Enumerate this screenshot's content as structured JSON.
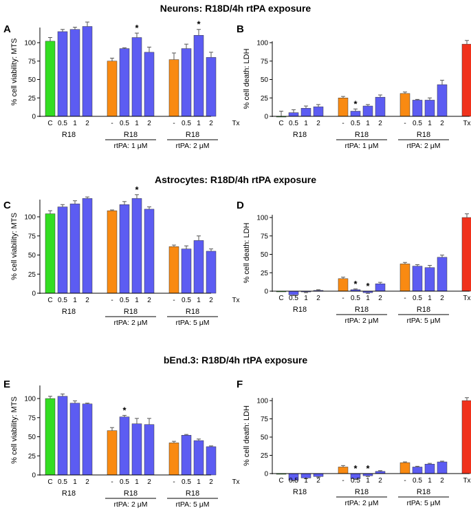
{
  "sections": [
    {
      "title": "Neurons: R18D/4h rtPA exposure"
    },
    {
      "title": "Astrocytes: R18D/4h rtPA exposure"
    },
    {
      "title": "bEnd.3: R18D/4h rtPA exposure"
    }
  ],
  "colors": {
    "control": "#33dd22",
    "rtpa_only": "#f98a12",
    "r18": "#5c5cf2",
    "tx": "#f0321c"
  },
  "chart_data": [
    {
      "type": "bar",
      "panel": "A",
      "ylabel": "% cell viability: MTS",
      "ylim": [
        0,
        125
      ],
      "yticks": [
        0,
        25,
        50,
        75,
        100
      ],
      "groups": [
        {
          "categories": [
            "C",
            "0.5",
            "1",
            "2"
          ],
          "values": [
            102,
            115,
            118,
            122
          ],
          "errors": [
            5,
            3,
            3,
            6
          ],
          "colors": [
            "control",
            "r18",
            "r18",
            "r18"
          ],
          "stars": [
            false,
            false,
            false,
            false
          ],
          "label": "R18",
          "sublabel": ""
        },
        {
          "categories": [
            "-",
            "0.5",
            "1",
            "2"
          ],
          "values": [
            75,
            92,
            107,
            87
          ],
          "errors": [
            4,
            1,
            6,
            7
          ],
          "colors": [
            "rtpa_only",
            "r18",
            "r18",
            "r18"
          ],
          "stars": [
            false,
            false,
            true,
            false
          ],
          "label": "R18",
          "sublabel": "rtPA: 1 μM"
        },
        {
          "categories": [
            "-",
            "0.5",
            "1",
            "2"
          ],
          "values": [
            77,
            92,
            110,
            80
          ],
          "errors": [
            9,
            6,
            8,
            7
          ],
          "colors": [
            "rtpa_only",
            "r18",
            "r18",
            "r18"
          ],
          "stars": [
            false,
            false,
            true,
            false
          ],
          "label": "R18",
          "sublabel": "rtPA: 2 μM"
        },
        {
          "categories": [
            "Tx"
          ],
          "values": [
            null
          ],
          "errors": [
            0
          ],
          "colors": [
            "tx"
          ],
          "stars": [
            false
          ],
          "label": "",
          "sublabel": ""
        }
      ]
    },
    {
      "type": "bar",
      "panel": "B",
      "ylabel": "% cell death: LDH",
      "ylim": [
        0,
        100
      ],
      "yticks": [
        0,
        25,
        50,
        75,
        100
      ],
      "groups": [
        {
          "categories": [
            "C",
            "0.5",
            "1",
            "2"
          ],
          "values": [
            0,
            5,
            11,
            13
          ],
          "errors": [
            7,
            4,
            3,
            3
          ],
          "colors": [
            "control",
            "r18",
            "r18",
            "r18"
          ],
          "stars": [
            false,
            false,
            false,
            false
          ],
          "label": "R18",
          "sublabel": ""
        },
        {
          "categories": [
            "-",
            "0.5",
            "1",
            "2"
          ],
          "values": [
            25,
            7,
            14,
            26
          ],
          "errors": [
            2,
            3,
            2,
            3
          ],
          "colors": [
            "rtpa_only",
            "r18",
            "r18",
            "r18"
          ],
          "stars": [
            false,
            true,
            false,
            false
          ],
          "label": "R18",
          "sublabel": "rtPA: 1 μM"
        },
        {
          "categories": [
            "-",
            "0.5",
            "1",
            "2"
          ],
          "values": [
            31,
            22,
            22,
            43
          ],
          "errors": [
            2,
            1,
            3,
            6
          ],
          "colors": [
            "rtpa_only",
            "r18",
            "r18",
            "r18"
          ],
          "stars": [
            false,
            false,
            false,
            false
          ],
          "label": "R18",
          "sublabel": "rtPA: 2 μM"
        },
        {
          "categories": [
            "Tx"
          ],
          "values": [
            98
          ],
          "errors": [
            5
          ],
          "colors": [
            "tx"
          ],
          "stars": [
            false
          ],
          "label": "",
          "sublabel": ""
        }
      ]
    },
    {
      "type": "bar",
      "panel": "C",
      "ylabel": "% cell viability: MTS",
      "ylim": [
        0,
        125
      ],
      "yticks": [
        0,
        25,
        50,
        75,
        100
      ],
      "groups": [
        {
          "categories": [
            "C",
            "0.5",
            "1",
            "2"
          ],
          "values": [
            104,
            113,
            117,
            124
          ],
          "errors": [
            4,
            3,
            4,
            2
          ],
          "colors": [
            "control",
            "r18",
            "r18",
            "r18"
          ],
          "stars": [
            false,
            false,
            false,
            false
          ],
          "label": "R18",
          "sublabel": ""
        },
        {
          "categories": [
            "-",
            "0.5",
            "1",
            "2"
          ],
          "values": [
            108,
            116,
            124,
            110
          ],
          "errors": [
            1,
            4,
            5,
            3
          ],
          "colors": [
            "rtpa_only",
            "r18",
            "r18",
            "r18"
          ],
          "stars": [
            false,
            false,
            true,
            false
          ],
          "label": "R18",
          "sublabel": "rtPA: 2 μM"
        },
        {
          "categories": [
            "-",
            "0.5",
            "1",
            "2"
          ],
          "values": [
            61,
            58,
            69,
            55
          ],
          "errors": [
            2,
            4,
            6,
            3
          ],
          "colors": [
            "rtpa_only",
            "r18",
            "r18",
            "r18"
          ],
          "stars": [
            false,
            false,
            false,
            false
          ],
          "label": "R18",
          "sublabel": "rtPA: 5 μM"
        },
        {
          "categories": [
            "Tx"
          ],
          "values": [
            null
          ],
          "errors": [
            0
          ],
          "colors": [
            "tx"
          ],
          "stars": [
            false
          ],
          "label": "",
          "sublabel": ""
        }
      ]
    },
    {
      "type": "bar",
      "panel": "D",
      "ylabel": "% cell death: LDH",
      "ylim": [
        0,
        100
      ],
      "yticks": [
        0,
        25,
        50,
        75,
        100
      ],
      "groups": [
        {
          "categories": [
            "C",
            "0.5",
            "1",
            "2"
          ],
          "values": [
            0,
            -5,
            -1,
            1
          ],
          "errors": [
            0,
            1,
            1,
            1
          ],
          "colors": [
            "control",
            "r18",
            "r18",
            "r18"
          ],
          "stars": [
            false,
            false,
            false,
            false
          ],
          "label": "R18",
          "sublabel": ""
        },
        {
          "categories": [
            "-",
            "0.5",
            "1",
            "2"
          ],
          "values": [
            17,
            2,
            -2,
            10
          ],
          "errors": [
            2,
            1,
            1,
            2
          ],
          "colors": [
            "rtpa_only",
            "r18",
            "r18",
            "r18"
          ],
          "stars": [
            false,
            true,
            true,
            false
          ],
          "label": "R18",
          "sublabel": "rtPA: 2 μM"
        },
        {
          "categories": [
            "-",
            "0.5",
            "1",
            "2"
          ],
          "values": [
            37,
            34,
            32,
            46
          ],
          "errors": [
            2,
            2,
            3,
            3
          ],
          "colors": [
            "rtpa_only",
            "r18",
            "r18",
            "r18"
          ],
          "stars": [
            false,
            false,
            false,
            false
          ],
          "label": "R18",
          "sublabel": "rtPA: 5 μM"
        },
        {
          "categories": [
            "Tx"
          ],
          "values": [
            100
          ],
          "errors": [
            5
          ],
          "colors": [
            "tx"
          ],
          "stars": [
            false
          ],
          "label": "",
          "sublabel": ""
        }
      ]
    },
    {
      "type": "bar",
      "panel": "E",
      "ylabel": "% cell viability: MTS",
      "ylim": [
        0,
        115
      ],
      "yticks": [
        0,
        25,
        50,
        75,
        100
      ],
      "groups": [
        {
          "categories": [
            "C",
            "0.5",
            "1",
            "2"
          ],
          "values": [
            100,
            103,
            94,
            93
          ],
          "errors": [
            3,
            3,
            3,
            1
          ],
          "colors": [
            "control",
            "r18",
            "r18",
            "r18"
          ],
          "stars": [
            false,
            false,
            false,
            false
          ],
          "label": "R18",
          "sublabel": ""
        },
        {
          "categories": [
            "-",
            "0.5",
            "1",
            "2"
          ],
          "values": [
            58,
            76,
            67,
            66
          ],
          "errors": [
            4,
            2,
            7,
            8
          ],
          "colors": [
            "rtpa_only",
            "r18",
            "r18",
            "r18"
          ],
          "stars": [
            false,
            true,
            false,
            false
          ],
          "label": "R18",
          "sublabel": "rtPA: 2 μM"
        },
        {
          "categories": [
            "-",
            "0.5",
            "1",
            "2"
          ],
          "values": [
            42,
            52,
            45,
            37
          ],
          "errors": [
            2,
            1,
            2,
            1
          ],
          "colors": [
            "rtpa_only",
            "r18",
            "r18",
            "r18"
          ],
          "stars": [
            false,
            false,
            false,
            false
          ],
          "label": "R18",
          "sublabel": "rtPA: 5 μM"
        },
        {
          "categories": [
            "Tx"
          ],
          "values": [
            null
          ],
          "errors": [
            0
          ],
          "colors": [
            "tx"
          ],
          "stars": [
            false
          ],
          "label": "",
          "sublabel": ""
        }
      ]
    },
    {
      "type": "bar",
      "panel": "F",
      "ylabel": "% cell death: LDH",
      "ylim": [
        0,
        100
      ],
      "yticks": [
        0,
        25,
        50,
        75,
        100
      ],
      "groups": [
        {
          "categories": [
            "C",
            "0.5",
            "1",
            "2"
          ],
          "values": [
            0,
            -9,
            -6,
            -4
          ],
          "errors": [
            0,
            1,
            1,
            1
          ],
          "colors": [
            "control",
            "r18",
            "r18",
            "r18"
          ],
          "stars": [
            false,
            false,
            false,
            false
          ],
          "label": "R18",
          "sublabel": ""
        },
        {
          "categories": [
            "-",
            "0.5",
            "1",
            "2"
          ],
          "values": [
            9,
            -7,
            -3,
            3
          ],
          "errors": [
            2,
            1,
            1,
            1
          ],
          "colors": [
            "rtpa_only",
            "r18",
            "r18",
            "r18"
          ],
          "stars": [
            false,
            true,
            true,
            false
          ],
          "label": "R18",
          "sublabel": "rtPA: 2 μM"
        },
        {
          "categories": [
            "-",
            "0.5",
            "1",
            "2"
          ],
          "values": [
            15,
            9,
            13,
            16
          ],
          "errors": [
            1,
            1,
            1,
            1
          ],
          "colors": [
            "rtpa_only",
            "r18",
            "r18",
            "r18"
          ],
          "stars": [
            false,
            false,
            false,
            false
          ],
          "label": "R18",
          "sublabel": "rtPA: 5 μM"
        },
        {
          "categories": [
            "Tx"
          ],
          "values": [
            100
          ],
          "errors": [
            4
          ],
          "colors": [
            "tx"
          ],
          "stars": [
            false
          ],
          "label": "",
          "sublabel": ""
        }
      ]
    }
  ]
}
